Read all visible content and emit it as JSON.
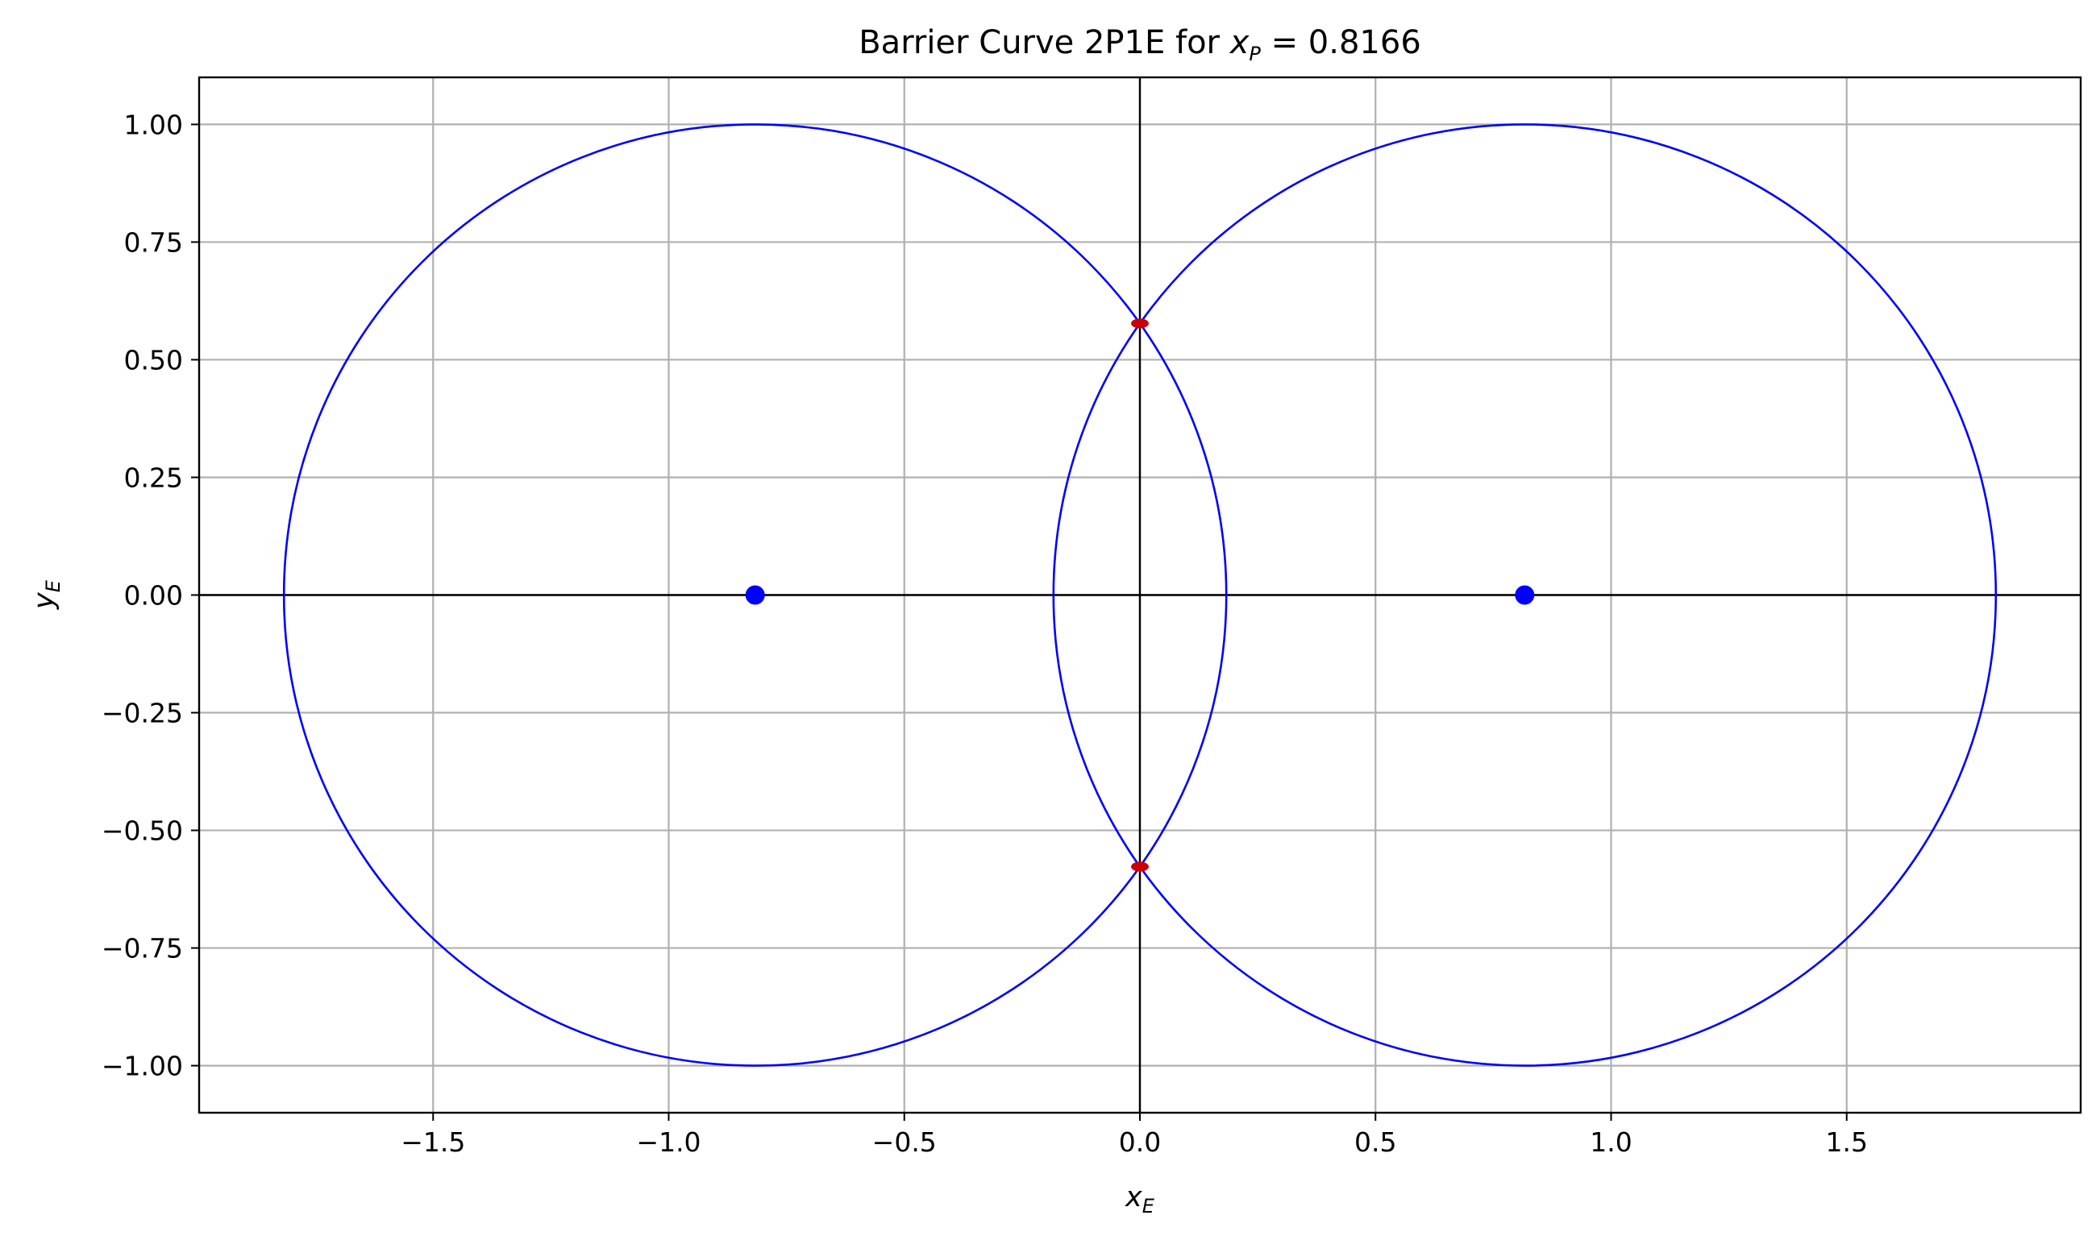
{
  "chart_data": {
    "type": "line",
    "title": {
      "prefix": "Barrier Curve 2P1E for ",
      "var": "x",
      "sub": "P",
      "suffix": " = 0.8166"
    },
    "xlabel": {
      "var": "x",
      "sub": "E"
    },
    "ylabel": {
      "var": "y",
      "sub": "E"
    },
    "xlim": [
      -1.9966,
      1.9966
    ],
    "ylim": [
      -1.1,
      1.1
    ],
    "xticks": [
      -1.5,
      -1.0,
      -0.5,
      0.0,
      0.5,
      1.0,
      1.5
    ],
    "xtick_labels": [
      "−1.5",
      "−1.0",
      "−0.5",
      "0.0",
      "0.5",
      "1.0",
      "1.5"
    ],
    "yticks": [
      1.0,
      0.75,
      0.5,
      0.25,
      0.0,
      -0.25,
      -0.5,
      -0.75,
      -1.0
    ],
    "ytick_labels": [
      "1.00",
      "0.75",
      "0.50",
      "0.25",
      "0.00",
      "−0.25",
      "−0.50",
      "−0.75",
      "−1.00"
    ],
    "grid": true,
    "series": [
      {
        "kind": "circle",
        "center": [
          -0.8166,
          0.0
        ],
        "radius": 1.0,
        "color": "#0000ff"
      },
      {
        "kind": "circle",
        "center": [
          0.8166,
          0.0
        ],
        "radius": 1.0,
        "color": "#0000ff"
      }
    ],
    "points": [
      {
        "x": -0.8166,
        "y": 0.0,
        "color": "#0000ff"
      },
      {
        "x": 0.8166,
        "y": 0.0,
        "color": "#0000ff"
      }
    ],
    "intersection_marks": [
      {
        "x": 0.0,
        "y": 0.5772,
        "color": "#cc0000"
      },
      {
        "x": 0.0,
        "y": -0.5772,
        "color": "#cc0000"
      }
    ],
    "reference_lines": {
      "x0": 0.0,
      "y0": 0.0,
      "color": "#000000"
    },
    "colors": {
      "grid": "#b0b0b0",
      "axes": "#000000",
      "curve": "#0000ff",
      "intersection": "#cc0000"
    }
  }
}
